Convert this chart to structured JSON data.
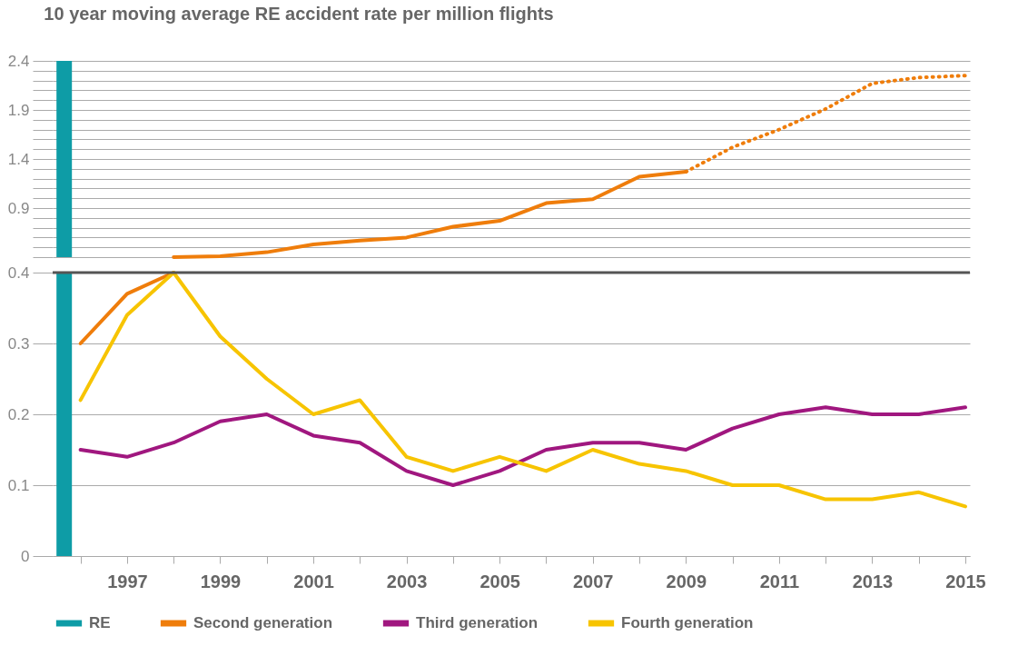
{
  "chart_data": [
    {
      "type": "line",
      "title": "10 year moving average RE accident rate per million flights",
      "series": [
        {
          "type": "bar",
          "color": "#0e9ca6",
          "x": [
            1995.65
          ],
          "base": [
            0.4
          ],
          "values": [
            2.0
          ]
        },
        {
          "color": "#ef7d0b",
          "x": [
            1998,
            1999,
            2000,
            2001,
            2002,
            2003,
            2004,
            2005,
            2006,
            2007,
            2008,
            2009
          ],
          "values": [
            0.4,
            0.41,
            0.45,
            0.53,
            0.57,
            0.6,
            0.71,
            0.77,
            0.95,
            0.99,
            1.22,
            1.27
          ]
        },
        {
          "color": "#ef7d0b",
          "line_style": "dotted",
          "x": [
            2009,
            2010,
            2011,
            2012,
            2013,
            2014,
            2015
          ],
          "values": [
            1.27,
            1.52,
            1.7,
            1.91,
            2.17,
            2.23,
            2.25
          ]
        }
      ],
      "xlim": [
        1995.5,
        2015
      ],
      "ylim": [
        0.4,
        2.4
      ],
      "yticks": [
        {
          "value": 0.4,
          "label": null
        },
        {
          "value": 0.5,
          "label": null
        },
        {
          "value": 0.6,
          "label": null
        },
        {
          "value": 0.7,
          "label": null
        },
        {
          "value": 0.8,
          "label": null
        },
        0.9,
        {
          "value": 1.0,
          "label": null
        },
        {
          "value": 1.1,
          "label": null
        },
        {
          "value": 1.2,
          "label": null
        },
        {
          "value": 1.3,
          "label": null
        },
        1.4,
        {
          "value": 1.5,
          "label": null
        },
        {
          "value": 1.6,
          "label": null
        },
        {
          "value": 1.7,
          "label": null
        },
        {
          "value": 1.8,
          "label": null
        },
        1.9,
        {
          "value": 2.0,
          "label": null
        },
        {
          "value": 2.1,
          "label": null
        },
        {
          "value": 2.2,
          "label": null
        },
        {
          "value": 2.3,
          "label": null
        },
        2.4
      ],
      "grid": "y",
      "tick_labels": "y"
    },
    {
      "type": "line",
      "x": [
        1996,
        1997,
        1998,
        1999,
        2000,
        2001,
        2002,
        2003,
        2004,
        2005,
        2006,
        2007,
        2008,
        2009,
        2010,
        2011,
        2012,
        2013,
        2014,
        2015
      ],
      "series": [
        {
          "name": "RE",
          "type": "bar",
          "color": "#0e9ca6",
          "x": [
            1995.65
          ],
          "values": [
            0.4
          ]
        },
        {
          "name": "Second generation",
          "color": "#ef7d0b",
          "x": [
            1996,
            1997,
            1998
          ],
          "values": [
            0.3,
            0.37,
            0.4
          ]
        },
        {
          "name": "Third generation",
          "color": "#a0177f",
          "values": [
            0.15,
            0.14,
            0.16,
            0.19,
            0.2,
            0.17,
            0.16,
            0.12,
            0.1,
            0.12,
            0.15,
            0.16,
            0.16,
            0.15,
            0.18,
            0.2,
            0.21,
            0.2,
            0.2,
            0.21
          ]
        },
        {
          "name": "Fourth generation",
          "color": "#f7c400",
          "values": [
            0.22,
            0.34,
            0.4,
            0.31,
            0.25,
            0.2,
            0.22,
            0.14,
            0.12,
            0.14,
            0.12,
            0.15,
            0.13,
            0.12,
            0.1,
            0.1,
            0.08,
            0.08,
            0.09,
            0.07
          ]
        }
      ],
      "xlim": [
        1995.5,
        2015
      ],
      "xticks": [
        {
          "value": 1996,
          "label": null
        },
        1997,
        {
          "value": 1998,
          "label": null
        },
        1999,
        {
          "value": 2000,
          "label": null
        },
        2001,
        {
          "value": 2002,
          "label": null
        },
        2003,
        {
          "value": 2004,
          "label": null
        },
        2005,
        {
          "value": 2006,
          "label": null
        },
        2007,
        {
          "value": 2008,
          "label": null
        },
        2009,
        {
          "value": 2010,
          "label": null
        },
        2011,
        {
          "value": 2012,
          "label": null
        },
        2013,
        {
          "value": 2014,
          "label": null
        },
        2015
      ],
      "ylim": [
        0,
        0.4
      ],
      "yticks": [
        0,
        0.1,
        0.2,
        0.3,
        0.4
      ],
      "ref_lines": [
        {
          "axis": "y",
          "value": 0.4,
          "color": "#555555"
        }
      ],
      "grid": "y",
      "legend": "bottom left",
      "line_style": "solid"
    }
  ]
}
